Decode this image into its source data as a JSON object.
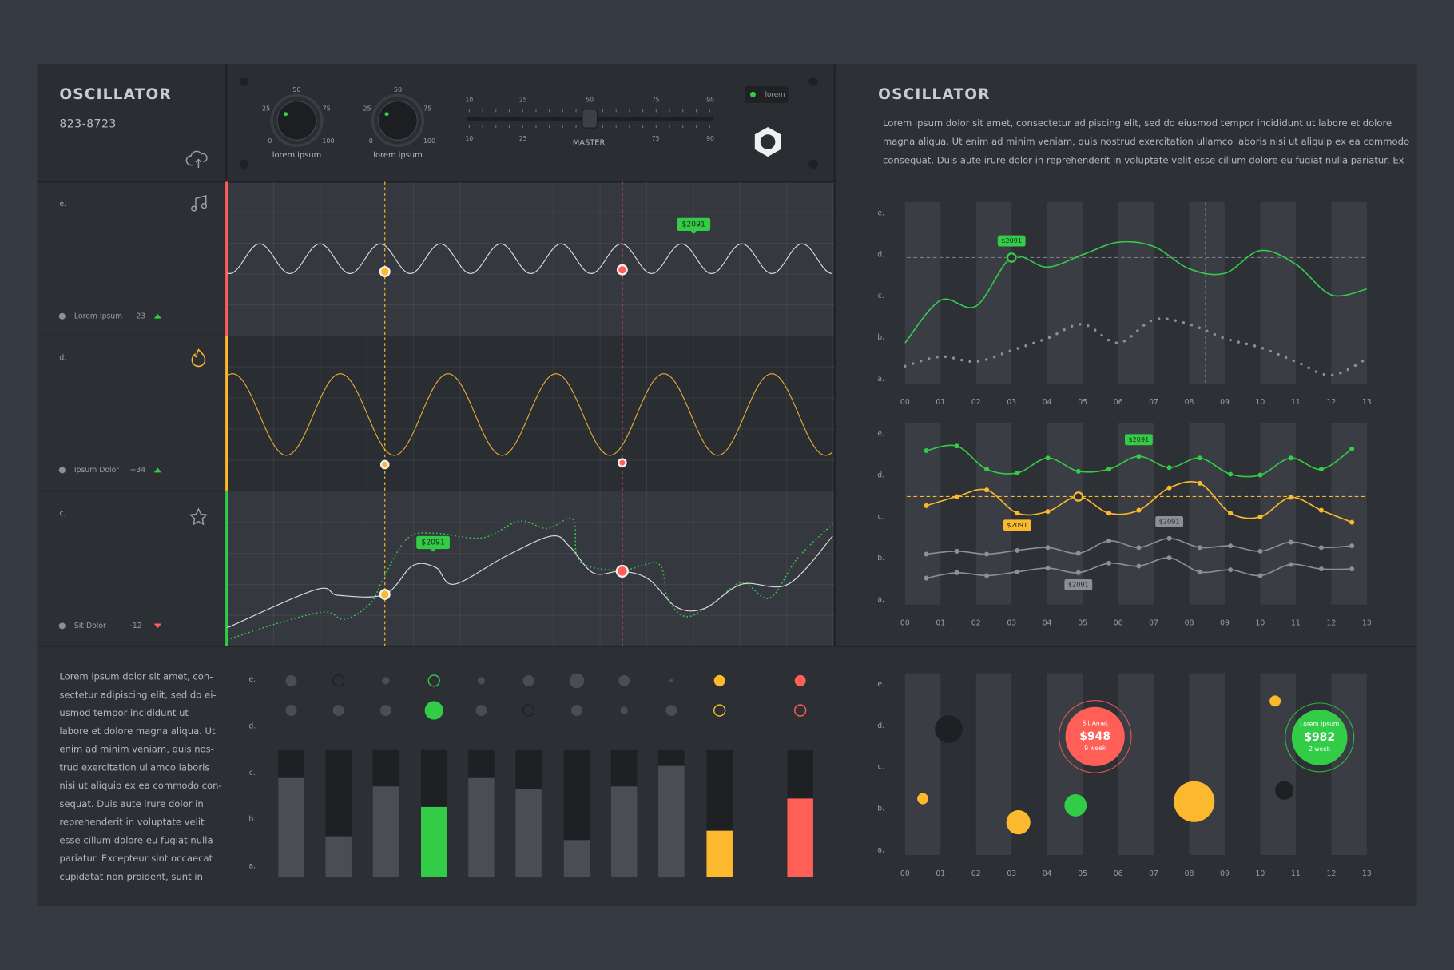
{
  "left_panel": {
    "title": "OSCILLATOR",
    "id": "823-8723",
    "knobs": [
      {
        "label": "lorem ipsum",
        "ticks": [
          "0",
          "25",
          "50",
          "75",
          "100"
        ]
      },
      {
        "label": "lorem ipsum",
        "ticks": [
          "0",
          "25",
          "50",
          "75",
          "100"
        ]
      }
    ],
    "master": {
      "label": "MASTER",
      "ticks": [
        "10",
        "25",
        "50",
        "75",
        "90"
      ]
    },
    "badge": "lorem",
    "tracks": [
      {
        "letter": "e.",
        "name": "Lorem Ipsum",
        "delta": "+23",
        "tag": "$2091"
      },
      {
        "letter": "d.",
        "name": "Ipsum Dolor",
        "delta": "+34"
      },
      {
        "letter": "c.",
        "name": "Sit Dolor",
        "delta": "-12",
        "tag": "$2091"
      }
    ]
  },
  "right_panel": {
    "title": "OSCILLATOR",
    "paragraph": [
      "Lorem ipsum dolor sit amet, consectetur adipiscing elit, sed do eiusmod tempor incididunt ut labore et dolore",
      "magna aliqua. Ut enim ad minim veniam, quis nostrud exercitation ullamco laboris nisi ut aliquip ex ea commodo",
      "consequat. Duis aute irure dolor in reprehenderit in voluptate velit esse cillum dolore eu fugiat nulla pariatur. Ex-"
    ]
  },
  "bottom_text": [
    "Lorem ipsum dolor sit amet, con-",
    "sectetur adipiscing elit, sed do ei-",
    "usmod tempor incididunt ut",
    "labore et dolore magna aliqua. Ut",
    "enim ad minim veniam, quis nos-",
    "trud exercitation ullamco laboris",
    "nisi ut aliquip ex ea commodo con-",
    "sequat. Duis aute irure dolor in",
    "reprehenderit in voluptate velit",
    "esse cillum dolore eu fugiat nulla",
    "pariatur. Excepteur sint occaecat",
    "cupidatat non proident, sunt in"
  ],
  "chart_data": [
    {
      "type": "line",
      "xlim": [
        0,
        13
      ],
      "xticks": [
        {
          "value": 0,
          "label": "00"
        },
        {
          "value": 1,
          "label": "01"
        },
        {
          "value": 2,
          "label": "02"
        },
        {
          "value": 3,
          "label": "03"
        },
        {
          "value": 4,
          "label": "04"
        },
        {
          "value": 5,
          "label": "05"
        },
        {
          "value": 6,
          "label": "06"
        },
        {
          "value": 7,
          "label": "07"
        },
        {
          "value": 8,
          "label": "08"
        },
        {
          "value": 9,
          "label": "09"
        },
        {
          "value": 10,
          "label": "10"
        },
        {
          "value": 11,
          "label": "11"
        },
        {
          "value": 12,
          "label": "12"
        },
        {
          "value": 13,
          "label": "13"
        }
      ],
      "ylim": [
        -0.12,
        4.27
      ],
      "yticks": [
        {
          "value": 0,
          "label": "a."
        },
        {
          "value": 1,
          "label": "b."
        },
        {
          "value": 2,
          "label": "c."
        },
        {
          "value": 3,
          "label": "d."
        },
        {
          "value": 4,
          "label": "e."
        }
      ],
      "x": [
        0,
        1,
        2,
        3,
        4,
        5,
        6,
        7,
        8,
        9,
        10,
        11,
        12,
        13
      ],
      "series": [
        {
          "color": "#33cc47",
          "values": [
            0.87,
            1.9,
            1.76,
            2.93,
            2.7,
            3.0,
            3.3,
            3.2,
            2.66,
            2.55,
            3.1,
            2.77,
            2.03,
            2.17
          ]
        },
        {
          "color": "#8c8f94",
          "style": "dotted",
          "values": [
            0.31,
            0.54,
            0.42,
            0.69,
            0.98,
            1.32,
            0.87,
            1.43,
            1.32,
            0.98,
            0.76,
            0.42,
            0.09,
            0.49
          ]
        }
      ],
      "highlight": {
        "series": 0,
        "index": 3
      },
      "annotations": [
        {
          "text": "$2091",
          "series": 0,
          "index": 3,
          "position": "above"
        }
      ]
    },
    {
      "type": "line",
      "xlim": [
        0,
        13
      ],
      "xticks": [
        {
          "value": 0,
          "label": "00"
        },
        {
          "value": 1,
          "label": "01"
        },
        {
          "value": 2,
          "label": "02"
        },
        {
          "value": 3,
          "label": "03"
        },
        {
          "value": 4,
          "label": "04"
        },
        {
          "value": 5,
          "label": "05"
        },
        {
          "value": 6,
          "label": "06"
        },
        {
          "value": 7,
          "label": "07"
        },
        {
          "value": 8,
          "label": "08"
        },
        {
          "value": 9,
          "label": "09"
        },
        {
          "value": 10,
          "label": "10"
        },
        {
          "value": 11,
          "label": "11"
        },
        {
          "value": 12,
          "label": "12"
        },
        {
          "value": 13,
          "label": "13"
        }
      ],
      "ylim": [
        -0.12,
        4.27
      ],
      "yticks": [
        {
          "value": 0,
          "label": "a."
        },
        {
          "value": 1,
          "label": "b."
        },
        {
          "value": 2,
          "label": "c."
        },
        {
          "value": 3,
          "label": "d."
        },
        {
          "value": 4,
          "label": "e."
        }
      ],
      "x": [
        0.6,
        1.46,
        2.3,
        3.16,
        4.02,
        4.88,
        5.74,
        6.58,
        7.44,
        8.3,
        9.16,
        10,
        10.86,
        11.72,
        12.58
      ],
      "markers": true,
      "series": [
        {
          "color": "#33cc47",
          "values": [
            3.6,
            3.71,
            3.15,
            3.06,
            3.42,
            3.1,
            3.15,
            3.46,
            3.19,
            3.42,
            3.03,
            3.01,
            3.42,
            3.15,
            3.64
          ]
        },
        {
          "color": "#fdb92e",
          "values": [
            2.27,
            2.49,
            2.65,
            2.09,
            2.13,
            2.49,
            2.09,
            2.16,
            2.7,
            2.81,
            2.09,
            2.0,
            2.47,
            2.16,
            1.87
          ]
        },
        {
          "color": "#8c8f94",
          "values": [
            1.1,
            1.17,
            1.1,
            1.19,
            1.26,
            1.12,
            1.42,
            1.26,
            1.48,
            1.26,
            1.3,
            1.17,
            1.39,
            1.26,
            1.3
          ]
        },
        {
          "color": "#8c8f94",
          "values": [
            0.52,
            0.65,
            0.58,
            0.67,
            0.76,
            0.65,
            0.88,
            0.81,
            1.01,
            0.67,
            0.72,
            0.58,
            0.85,
            0.74,
            0.74
          ]
        }
      ],
      "highlight": {
        "series": 1,
        "index": 5
      },
      "annotations": [
        {
          "text": "$2091",
          "series": 0,
          "index": 7,
          "position": "above"
        },
        {
          "text": "$2091",
          "series": 1,
          "index": 3,
          "position": "below"
        },
        {
          "text": "$2091",
          "series": 2,
          "index": 8,
          "position": "above"
        },
        {
          "text": "$2091",
          "series": 3,
          "index": 5,
          "position": "below"
        }
      ]
    },
    {
      "type": "bubble",
      "xlim": [
        0,
        13
      ],
      "xticks": [
        {
          "value": 0,
          "label": "00"
        },
        {
          "value": 1,
          "label": "01"
        },
        {
          "value": 2,
          "label": "02"
        },
        {
          "value": 3,
          "label": "03"
        },
        {
          "value": 4,
          "label": "04"
        },
        {
          "value": 5,
          "label": "05"
        },
        {
          "value": 6,
          "label": "06"
        },
        {
          "value": 7,
          "label": "07"
        },
        {
          "value": 8,
          "label": "08"
        },
        {
          "value": 9,
          "label": "09"
        },
        {
          "value": 10,
          "label": "10"
        },
        {
          "value": 11,
          "label": "11"
        },
        {
          "value": 12,
          "label": "12"
        },
        {
          "value": 13,
          "label": "13"
        }
      ],
      "ylim": [
        -0.12,
        4.27
      ],
      "yticks": [
        {
          "value": 0,
          "label": "a."
        },
        {
          "value": 1,
          "label": "b."
        },
        {
          "value": 2,
          "label": "c."
        },
        {
          "value": 3,
          "label": "d."
        },
        {
          "value": 4,
          "label": "e."
        }
      ],
      "x": [
        0.5,
        1.23,
        3.19,
        4.8,
        5.35,
        8.14,
        10.42,
        10.68,
        11.67
      ],
      "values": [
        1.24,
        2.92,
        0.67,
        1.08,
        2.74,
        1.17,
        3.6,
        1.44,
        2.72
      ],
      "sizes": [
        6,
        15,
        13,
        12,
        32,
        22,
        6,
        10,
        30
      ],
      "colors": [
        "#fdb92e",
        "#1e2023",
        "#fdb92e",
        "#33cc47",
        "#ff5f57",
        "#fdb92e",
        "#fdb92e",
        "#1e2023",
        "#33cc47"
      ],
      "bubble_labels": [
        {
          "index": 4,
          "title": "Sit Amet",
          "value": "$948",
          "note": "9 week"
        },
        {
          "index": 8,
          "title": "Lorem Ipsum",
          "value": "$982",
          "note": "2 week"
        }
      ]
    },
    {
      "type": "bar",
      "categories": [
        null,
        null,
        null,
        null,
        null,
        null,
        null,
        null,
        null,
        null,
        null
      ],
      "ylim": [
        -0.24,
        4.0
      ],
      "yticks": [
        {
          "value": 0,
          "label": "a."
        },
        {
          "value": 1,
          "label": "b."
        },
        {
          "value": 2,
          "label": "c."
        },
        {
          "value": 3,
          "label": "d."
        },
        {
          "value": 4,
          "label": "e."
        }
      ],
      "values": [
        1.89,
        0.64,
        1.71,
        1.27,
        1.89,
        1.65,
        0.56,
        1.71,
        2.15,
        0.76,
        1.45
      ],
      "colors": [
        "#4a4d53",
        "#4a4d53",
        "#4a4d53",
        "#33cc47",
        "#4a4d53",
        "#4a4d53",
        "#4a4d53",
        "#4a4d53",
        "#4a4d53",
        "#fdb92e",
        "#ff5f57"
      ]
    }
  ]
}
